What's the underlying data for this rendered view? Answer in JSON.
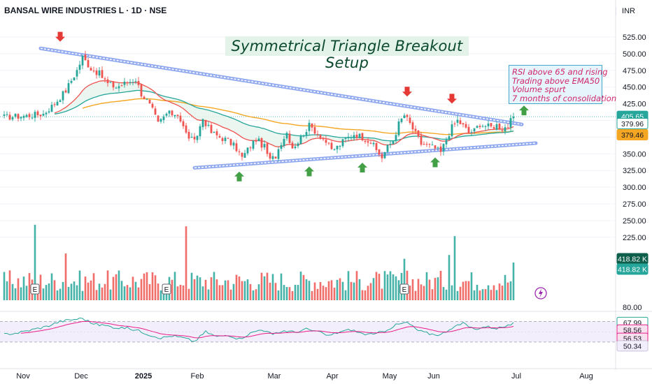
{
  "header": {
    "symbol_line": "BANSAL WIRE INDUSTRIES L · 1D · NSE",
    "currency": "INR"
  },
  "annotations": {
    "title": "Symmetrical Triangle Breakout Setup",
    "notes": [
      "RSI above 65 and rising",
      "Trading above EMA50",
      "Volume spurt",
      "7 months of consolidation"
    ],
    "earnings_marker": "E"
  },
  "colors": {
    "up": "#26a69a",
    "down": "#ef5350",
    "ema_fast": "#ef5350",
    "ema_slow": "#26a69a",
    "ema_long": "#f5a623",
    "trendline": "#8fa8ef",
    "rsi": "#26a69a",
    "rsi_ma": "#e91e8c",
    "arrow_up": "#43a047",
    "arrow_down": "#e53935"
  },
  "chart_data": [
    {
      "type": "candlestick",
      "panel": "price",
      "y_ticks": [
        525,
        500,
        475,
        450,
        425,
        400,
        375,
        350,
        325,
        300,
        275,
        250,
        225
      ],
      "ylim": [
        212,
        540
      ],
      "x_ticks": [
        "Nov",
        "Dec",
        "2025",
        "Feb",
        "Mar",
        "Apr",
        "May",
        "Jun",
        "Jul",
        "Aug"
      ],
      "anchors": [
        {
          "day": 0,
          "v": 405
        },
        {
          "day": 8,
          "v": 407
        },
        {
          "day": 14,
          "v": 410
        },
        {
          "day": 18,
          "v": 425
        },
        {
          "day": 22,
          "v": 445
        },
        {
          "day": 26,
          "v": 475
        },
        {
          "day": 28,
          "v": 495
        },
        {
          "day": 31,
          "v": 478
        },
        {
          "day": 34,
          "v": 470
        },
        {
          "day": 37,
          "v": 455
        },
        {
          "day": 40,
          "v": 450
        },
        {
          "day": 44,
          "v": 457
        },
        {
          "day": 47,
          "v": 462
        },
        {
          "day": 49,
          "v": 440
        },
        {
          "day": 51,
          "v": 430
        },
        {
          "day": 53,
          "v": 415
        },
        {
          "day": 55,
          "v": 395
        },
        {
          "day": 58,
          "v": 410
        },
        {
          "day": 62,
          "v": 410
        },
        {
          "day": 65,
          "v": 380
        },
        {
          "day": 68,
          "v": 367
        },
        {
          "day": 71,
          "v": 403
        },
        {
          "day": 74,
          "v": 382
        },
        {
          "day": 77,
          "v": 375
        },
        {
          "day": 80,
          "v": 370
        },
        {
          "day": 83,
          "v": 358
        },
        {
          "day": 85,
          "v": 344
        },
        {
          "day": 88,
          "v": 362
        },
        {
          "day": 90,
          "v": 372
        },
        {
          "day": 93,
          "v": 360
        },
        {
          "day": 95,
          "v": 340
        },
        {
          "day": 97,
          "v": 347
        },
        {
          "day": 99,
          "v": 368
        },
        {
          "day": 101,
          "v": 382
        },
        {
          "day": 103,
          "v": 360
        },
        {
          "day": 105,
          "v": 368
        },
        {
          "day": 107,
          "v": 381
        },
        {
          "day": 109,
          "v": 392
        },
        {
          "day": 111,
          "v": 385
        },
        {
          "day": 113,
          "v": 377
        },
        {
          "day": 115,
          "v": 368
        },
        {
          "day": 117,
          "v": 355
        },
        {
          "day": 119,
          "v": 360
        },
        {
          "day": 122,
          "v": 372
        },
        {
          "day": 125,
          "v": 380
        },
        {
          "day": 128,
          "v": 375
        },
        {
          "day": 131,
          "v": 368
        },
        {
          "day": 133,
          "v": 355
        },
        {
          "day": 135,
          "v": 345
        },
        {
          "day": 137,
          "v": 360
        },
        {
          "day": 139,
          "v": 370
        },
        {
          "day": 141,
          "v": 395
        },
        {
          "day": 143,
          "v": 408
        },
        {
          "day": 145,
          "v": 395
        },
        {
          "day": 147,
          "v": 380
        },
        {
          "day": 149,
          "v": 365
        },
        {
          "day": 152,
          "v": 362
        },
        {
          "day": 154,
          "v": 358
        },
        {
          "day": 156,
          "v": 352
        },
        {
          "day": 158,
          "v": 372
        },
        {
          "day": 160,
          "v": 390
        },
        {
          "day": 162,
          "v": 400
        },
        {
          "day": 164,
          "v": 392
        },
        {
          "day": 166,
          "v": 382
        },
        {
          "day": 168,
          "v": 385
        },
        {
          "day": 170,
          "v": 395
        },
        {
          "day": 172,
          "v": 392
        },
        {
          "day": 174,
          "v": 390
        },
        {
          "day": 176,
          "v": 393
        },
        {
          "day": 178,
          "v": 388
        },
        {
          "day": 180,
          "v": 392
        },
        {
          "day": 182,
          "v": 405.65
        }
      ],
      "last_close": 405.65,
      "ema_values": {
        "ema_fast": 379.96,
        "ema_long": 379.46
      },
      "trendline_upper": [
        {
          "day": 13,
          "v": 508
        },
        {
          "day": 185,
          "v": 394
        }
      ],
      "trendline_lower": [
        {
          "day": 68,
          "v": 329
        },
        {
          "day": 190,
          "v": 366
        }
      ],
      "resistance_touches_days": [
        20,
        144,
        160
      ],
      "support_touches_days": [
        84,
        109,
        128,
        154
      ],
      "breakout_day": 182,
      "earnings_days": [
        11,
        58,
        143
      ]
    },
    {
      "type": "bar",
      "panel": "volume",
      "label_value": "418.82 K",
      "label_value_2": "418.82 K",
      "relative_spikes": [
        {
          "day": 11,
          "value": 1.0
        },
        {
          "day": 22,
          "value": 0.62
        },
        {
          "day": 65,
          "value": 0.98
        },
        {
          "day": 143,
          "value": 0.55
        },
        {
          "day": 159,
          "value": 0.6
        },
        {
          "day": 161,
          "value": 0.85
        },
        {
          "day": 182,
          "value": 0.5
        }
      ]
    },
    {
      "type": "line",
      "panel": "rsi",
      "y_ticks": [
        80
      ],
      "labels": {
        "rsi": "67.99",
        "rsi_ma": "58.56",
        "upper_band_tag": "56.53",
        "lower_band_tag": "50.34"
      },
      "anchors": [
        {
          "day": 0,
          "v": 45
        },
        {
          "day": 5,
          "v": 48
        },
        {
          "day": 10,
          "v": 54
        },
        {
          "day": 15,
          "v": 60
        },
        {
          "day": 20,
          "v": 70
        },
        {
          "day": 25,
          "v": 74
        },
        {
          "day": 28,
          "v": 76
        },
        {
          "day": 32,
          "v": 65
        },
        {
          "day": 36,
          "v": 62
        },
        {
          "day": 40,
          "v": 58
        },
        {
          "day": 44,
          "v": 57
        },
        {
          "day": 48,
          "v": 52
        },
        {
          "day": 52,
          "v": 44
        },
        {
          "day": 56,
          "v": 38
        },
        {
          "day": 60,
          "v": 42
        },
        {
          "day": 64,
          "v": 38
        },
        {
          "day": 68,
          "v": 31
        },
        {
          "day": 72,
          "v": 50
        },
        {
          "day": 76,
          "v": 40
        },
        {
          "day": 80,
          "v": 44
        },
        {
          "day": 84,
          "v": 36
        },
        {
          "day": 88,
          "v": 47
        },
        {
          "day": 92,
          "v": 55
        },
        {
          "day": 96,
          "v": 44
        },
        {
          "day": 100,
          "v": 52
        },
        {
          "day": 104,
          "v": 49
        },
        {
          "day": 108,
          "v": 55
        },
        {
          "day": 112,
          "v": 50
        },
        {
          "day": 116,
          "v": 42
        },
        {
          "day": 120,
          "v": 50
        },
        {
          "day": 124,
          "v": 54
        },
        {
          "day": 128,
          "v": 46
        },
        {
          "day": 132,
          "v": 44
        },
        {
          "day": 136,
          "v": 52
        },
        {
          "day": 140,
          "v": 63
        },
        {
          "day": 144,
          "v": 68
        },
        {
          "day": 148,
          "v": 52
        },
        {
          "day": 152,
          "v": 46
        },
        {
          "day": 156,
          "v": 44
        },
        {
          "day": 160,
          "v": 58
        },
        {
          "day": 164,
          "v": 66
        },
        {
          "day": 168,
          "v": 55
        },
        {
          "day": 172,
          "v": 60
        },
        {
          "day": 176,
          "v": 57
        },
        {
          "day": 180,
          "v": 61
        },
        {
          "day": 182,
          "v": 67.99
        }
      ],
      "ma_last": 58.56,
      "bands": [
        70,
        30
      ]
    }
  ]
}
